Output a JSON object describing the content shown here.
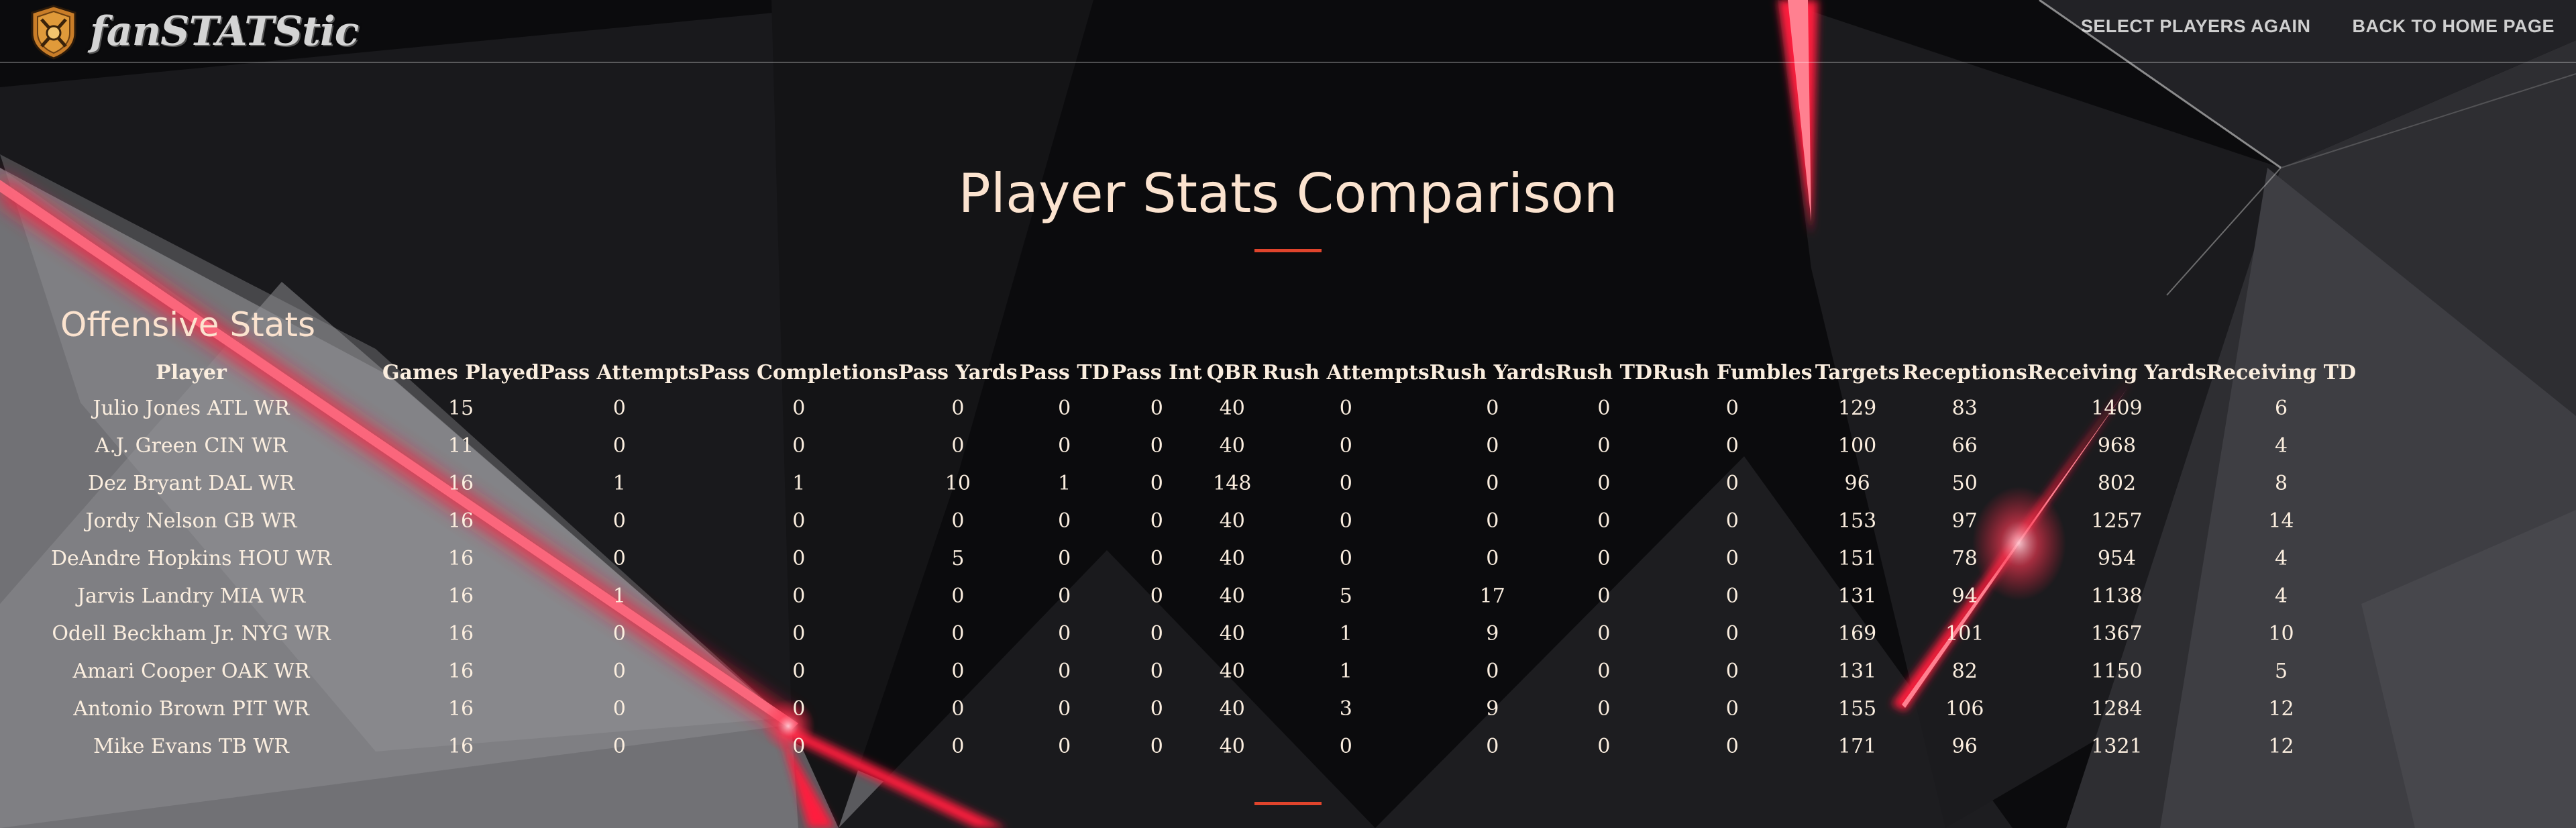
{
  "brand": {
    "name": "fanSTATStic"
  },
  "nav": {
    "select_players": "SELECT PLAYERS AGAIN",
    "back_home": "BACK TO HOME PAGE"
  },
  "page": {
    "title": "Player Stats Comparison",
    "section_title": "Offensive Stats"
  },
  "table": {
    "headers": [
      "Player",
      "Games Played",
      "Pass Attempts",
      "Pass Completions",
      "Pass Yards",
      "Pass TD",
      "Pass Int",
      "QBR",
      "Rush Attempts",
      "Rush Yards",
      "Rush TD",
      "Rush Fumbles",
      "Targets",
      "Receptions",
      "Receiving Yards",
      "Receiving TD"
    ],
    "rows": [
      [
        "Julio Jones ATL WR",
        "15",
        "0",
        "0",
        "0",
        "0",
        "0",
        "40",
        "0",
        "0",
        "0",
        "0",
        "129",
        "83",
        "1409",
        "6"
      ],
      [
        "A.J. Green CIN WR",
        "11",
        "0",
        "0",
        "0",
        "0",
        "0",
        "40",
        "0",
        "0",
        "0",
        "0",
        "100",
        "66",
        "968",
        "4"
      ],
      [
        "Dez Bryant DAL WR",
        "16",
        "1",
        "1",
        "10",
        "1",
        "0",
        "148",
        "0",
        "0",
        "0",
        "0",
        "96",
        "50",
        "802",
        "8"
      ],
      [
        "Jordy Nelson GB WR",
        "16",
        "0",
        "0",
        "0",
        "0",
        "0",
        "40",
        "0",
        "0",
        "0",
        "0",
        "153",
        "97",
        "1257",
        "14"
      ],
      [
        "DeAndre Hopkins HOU WR",
        "16",
        "0",
        "0",
        "5",
        "0",
        "0",
        "40",
        "0",
        "0",
        "0",
        "0",
        "151",
        "78",
        "954",
        "4"
      ],
      [
        "Jarvis Landry MIA WR",
        "16",
        "1",
        "0",
        "0",
        "0",
        "0",
        "40",
        "5",
        "17",
        "0",
        "0",
        "131",
        "94",
        "1138",
        "4"
      ],
      [
        "Odell Beckham Jr. NYG WR",
        "16",
        "0",
        "0",
        "0",
        "0",
        "0",
        "40",
        "1",
        "9",
        "0",
        "0",
        "169",
        "101",
        "1367",
        "10"
      ],
      [
        "Amari Cooper OAK WR",
        "16",
        "0",
        "0",
        "0",
        "0",
        "0",
        "40",
        "1",
        "0",
        "0",
        "0",
        "131",
        "82",
        "1150",
        "5"
      ],
      [
        "Antonio Brown PIT WR",
        "16",
        "0",
        "0",
        "0",
        "0",
        "0",
        "40",
        "3",
        "9",
        "0",
        "0",
        "155",
        "106",
        "1284",
        "12"
      ],
      [
        "Mike Evans TB WR",
        "16",
        "0",
        "0",
        "0",
        "0",
        "0",
        "40",
        "0",
        "0",
        "0",
        "0",
        "171",
        "96",
        "1321",
        "12"
      ]
    ]
  },
  "colors": {
    "accent": "#e0442c",
    "heading": "#fbe3cf",
    "background": "#0c0c0e",
    "glow": "#ff1e3c"
  },
  "icons": {
    "logo": "shield-crest-icon"
  }
}
